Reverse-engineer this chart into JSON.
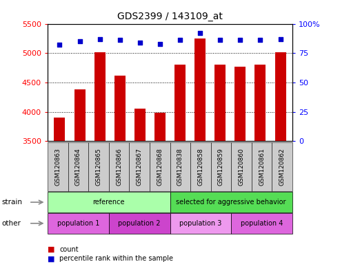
{
  "title": "GDS2399 / 143109_at",
  "samples": [
    "GSM120863",
    "GSM120864",
    "GSM120865",
    "GSM120866",
    "GSM120867",
    "GSM120868",
    "GSM120838",
    "GSM120858",
    "GSM120859",
    "GSM120860",
    "GSM120861",
    "GSM120862"
  ],
  "counts": [
    3900,
    4380,
    5010,
    4620,
    4060,
    3990,
    4800,
    5250,
    4800,
    4770,
    4800,
    5010
  ],
  "percentiles": [
    82,
    85,
    87,
    86,
    84,
    83,
    86,
    92,
    86,
    86,
    86,
    87
  ],
  "ylim_left": [
    3500,
    5500
  ],
  "ylim_right": [
    0,
    100
  ],
  "yticks_left": [
    3500,
    4000,
    4500,
    5000,
    5500
  ],
  "yticks_right": [
    0,
    25,
    50,
    75,
    100
  ],
  "bar_color": "#cc0000",
  "dot_color": "#0000cc",
  "strain_groups": [
    {
      "label": "reference",
      "start": 0,
      "end": 6,
      "color": "#aaffaa"
    },
    {
      "label": "selected for aggressive behavior",
      "start": 6,
      "end": 12,
      "color": "#55dd55"
    }
  ],
  "other_groups": [
    {
      "label": "population 1",
      "start": 0,
      "end": 3,
      "color": "#dd66dd"
    },
    {
      "label": "population 2",
      "start": 3,
      "end": 6,
      "color": "#cc44cc"
    },
    {
      "label": "population 3",
      "start": 6,
      "end": 9,
      "color": "#ee99ee"
    },
    {
      "label": "population 4",
      "start": 9,
      "end": 12,
      "color": "#dd66dd"
    }
  ],
  "legend_count_label": "count",
  "legend_pct_label": "percentile rank within the sample",
  "strain_label": "strain",
  "other_label": "other",
  "xtick_bg": "#cccccc",
  "spine_color": "#888888"
}
